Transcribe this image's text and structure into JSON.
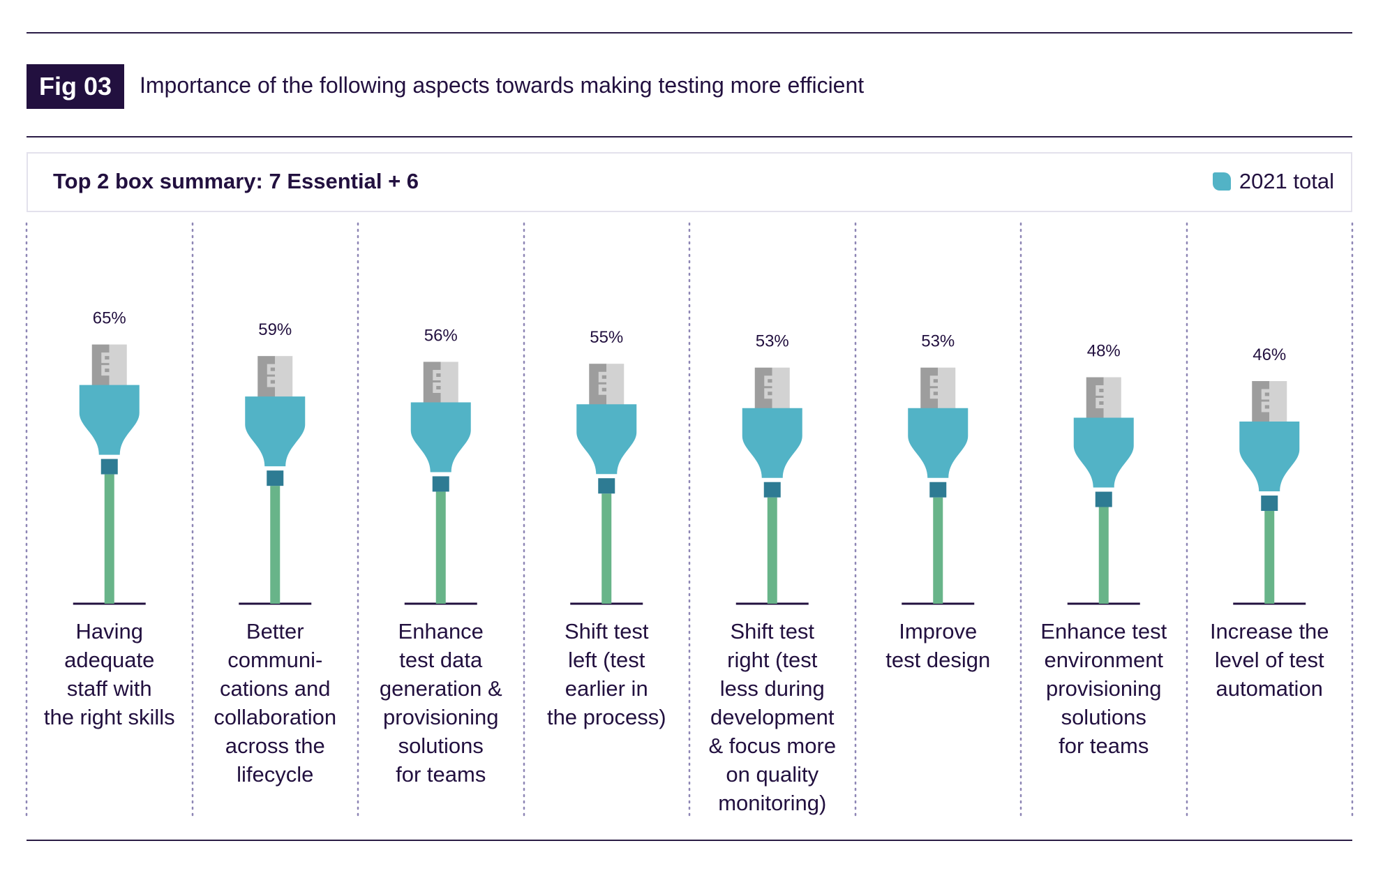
{
  "figure": {
    "badge": "Fig 03",
    "title": "Importance of the following aspects towards making testing more efficient"
  },
  "summary": {
    "title": "Top 2 box summary: 7 Essential + 6",
    "legend_label": "2021 total"
  },
  "colors": {
    "plug": "#52b3c6",
    "plug_neck": "#2e7b93",
    "cable": "#68b489",
    "prong_dark": "#9d9d9d",
    "prong_light": "#d2d2d2",
    "text": "#22103f",
    "divider": "#8e86b5"
  },
  "chart_data": {
    "type": "bar",
    "categories": [
      [
        "Having",
        "adequate",
        "staff with",
        "the right skills"
      ],
      [
        "Better",
        "communi-",
        "cations and",
        "collaboration",
        "across the",
        "lifecycle"
      ],
      [
        "Enhance",
        "test data",
        "generation &",
        "provisioning",
        "solutions",
        "for teams"
      ],
      [
        "Shift test",
        "left (test",
        "earlier in",
        "the process)"
      ],
      [
        "Shift test",
        "right (test",
        "less during",
        "development",
        "& focus more",
        "on quality",
        "monitoring)"
      ],
      [
        "Improve",
        "test design"
      ],
      [
        "Enhance test",
        "environment",
        "provisioning",
        "solutions",
        "for teams"
      ],
      [
        "Increase the",
        "level of test",
        "automation"
      ]
    ],
    "series": [
      {
        "name": "2021 total",
        "values": [
          65,
          59,
          56,
          55,
          53,
          53,
          48,
          46
        ],
        "data_labels": [
          "65%",
          "59%",
          "56%",
          "55%",
          "53%",
          "53%",
          "48%",
          "46%"
        ]
      }
    ],
    "title": "Importance of the following aspects towards making testing more efficient",
    "subtitle": "Top 2 box summary: 7 Essential + 6",
    "unit": "%",
    "legend_position": "top-right",
    "grid": false
  }
}
